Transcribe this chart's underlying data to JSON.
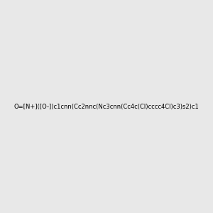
{
  "smiles": "O=[N+]([O-])c1cnn(Cc2nnc(Nc3cnn(Cc4c(Cl)cccc4Cl)c3)s2)c1",
  "background_color": "#e8e8e8",
  "atom_colors": {
    "N": "#0000ff",
    "S": "#cccc00",
    "O": "#ff0000",
    "Cl": "#00cc00",
    "C": "#000000",
    "H": "#000000"
  },
  "figsize": [
    3.0,
    3.0
  ],
  "dpi": 100
}
